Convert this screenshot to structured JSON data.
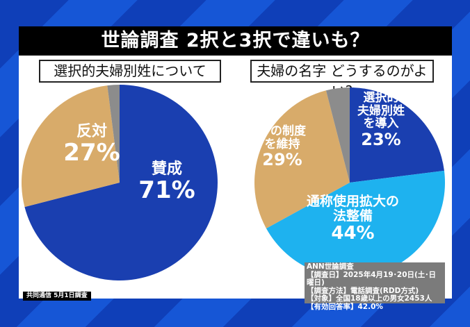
{
  "title": "世論調査 2択と3択で違いも？",
  "colors": {
    "blue": "#1a3fb0",
    "tan": "#d8ab6a",
    "gray": "#8c8c8c",
    "light_blue": "#1eb2ef"
  },
  "chart_data": [
    {
      "type": "pie",
      "title": "選択的夫婦別姓について",
      "unit": "%",
      "slices": [
        {
          "label": "賛成",
          "value": 71,
          "color": "#1a3fb0"
        },
        {
          "label": "反対",
          "value": 27,
          "color": "#d8ab6a"
        },
        {
          "label": "",
          "value": 2,
          "color": "#8c8c8c"
        }
      ],
      "display": [
        {
          "name": "賛成",
          "pct": "71%"
        },
        {
          "name": "反対",
          "pct": "27%"
        }
      ]
    },
    {
      "type": "pie",
      "title": "夫婦の名字 どうするのがよい?",
      "unit": "%",
      "slices": [
        {
          "label": "選択的夫婦別姓を導入",
          "value": 23,
          "color": "#1a3fb0"
        },
        {
          "label": "通称使用拡大の法整備",
          "value": 44,
          "color": "#1eb2ef"
        },
        {
          "label": "今の制度を維持",
          "value": 29,
          "color": "#d8ab6a"
        },
        {
          "label": "",
          "value": 4,
          "color": "#8c8c8c"
        }
      ],
      "display": [
        {
          "name1": "選択的",
          "name2": "夫婦別姓",
          "name3": "を導入",
          "pct": "23%"
        },
        {
          "name1": "通称使用拡大の",
          "name2": "法整備",
          "pct": "44%"
        },
        {
          "name1": "今の制度",
          "name2": "を維持",
          "pct": "29%"
        }
      ]
    }
  ],
  "info": [
    "ANN世論調査",
    "【調査日】2025年4月19･20日(土･日曜日)",
    "【調査方法】電話調査(RDD方式)",
    "【対象】全国18歳以上の男女2453人",
    "【有効回答率】42.0%"
  ],
  "source": "共同通信 5月1日調査"
}
